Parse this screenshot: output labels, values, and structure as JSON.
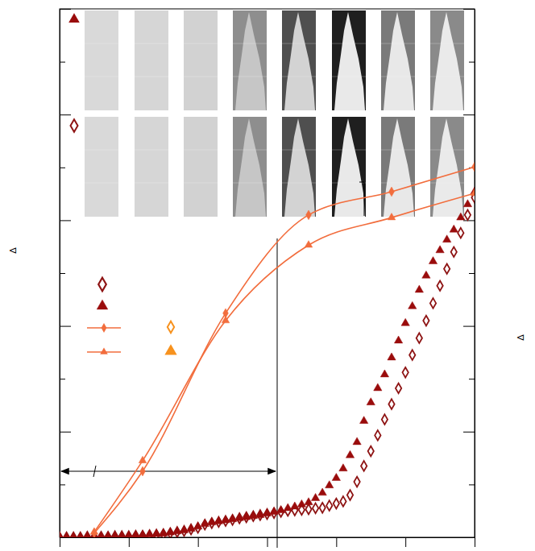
{
  "chart_data": {
    "type": "scatter",
    "y_label": "Δ",
    "y2_label": "Δ",
    "xlim": [
      0,
      6
    ],
    "xticks": [
      0,
      1,
      2,
      3,
      4,
      5,
      6
    ],
    "ylim": [
      0,
      10
    ],
    "yticks": [
      0,
      1,
      2,
      3,
      4,
      5,
      6,
      7,
      8,
      9,
      10
    ],
    "y2lim": [
      0,
      10
    ],
    "y2ticks": [
      0,
      1,
      2,
      3,
      4,
      5,
      6,
      7,
      8,
      9,
      10
    ],
    "tick_labels": false,
    "grid": false,
    "legend": "left",
    "series": [
      {
        "type": "scatter",
        "marker": "diamond-open",
        "color": "#8e1414",
        "x": [
          0,
          0.1,
          0.2,
          0.3,
          0.4,
          0.5,
          0.6,
          0.7,
          0.8,
          0.9,
          1,
          1.1,
          1.2,
          1.3,
          1.4,
          1.5,
          1.6,
          1.7,
          1.8,
          1.9,
          2,
          2.1,
          2.2,
          2.3,
          2.4,
          2.5,
          2.6,
          2.7,
          2.8,
          2.9,
          3,
          3.1,
          3.2,
          3.3,
          3.4,
          3.5,
          3.6,
          3.7,
          3.8,
          3.9,
          4,
          4.1,
          4.2,
          4.3,
          4.4,
          4.5,
          4.6,
          4.7,
          4.8,
          4.9,
          5,
          5.1,
          5.2,
          5.3,
          5.4,
          5.5,
          5.6,
          5.7,
          5.8,
          5.9,
          6
        ],
        "values": [
          0,
          0,
          0,
          0,
          0.01,
          0.01,
          0.01,
          0.01,
          0.02,
          0.02,
          0.02,
          0.03,
          0.03,
          0.04,
          0.05,
          0.06,
          0.08,
          0.1,
          0.12,
          0.15,
          0.18,
          0.24,
          0.27,
          0.29,
          0.31,
          0.33,
          0.36,
          0.38,
          0.4,
          0.42,
          0.44,
          0.46,
          0.48,
          0.5,
          0.51,
          0.52,
          0.53,
          0.55,
          0.56,
          0.6,
          0.64,
          0.68,
          0.8,
          1.05,
          1.35,
          1.63,
          1.93,
          2.23,
          2.52,
          2.82,
          3.12,
          3.45,
          3.77,
          4.1,
          4.43,
          4.76,
          5.08,
          5.4,
          5.76,
          6.1,
          6.43
        ]
      },
      {
        "type": "scatter",
        "marker": "triangle",
        "color": "#9a0c0c",
        "x": [
          0,
          0.1,
          0.2,
          0.3,
          0.4,
          0.5,
          0.6,
          0.7,
          0.8,
          0.9,
          1,
          1.1,
          1.2,
          1.3,
          1.4,
          1.5,
          1.6,
          1.7,
          1.8,
          1.9,
          2,
          2.1,
          2.2,
          2.3,
          2.4,
          2.5,
          2.6,
          2.7,
          2.8,
          2.9,
          3,
          3.1,
          3.2,
          3.3,
          3.4,
          3.5,
          3.6,
          3.7,
          3.8,
          3.9,
          4,
          4.1,
          4.2,
          4.3,
          4.4,
          4.5,
          4.6,
          4.7,
          4.8,
          4.9,
          5,
          5.1,
          5.2,
          5.3,
          5.4,
          5.5,
          5.6,
          5.7,
          5.8,
          5.9,
          6
        ],
        "values": [
          0,
          0,
          0,
          0,
          0.01,
          0.01,
          0.01,
          0.02,
          0.02,
          0.02,
          0.03,
          0.03,
          0.04,
          0.05,
          0.06,
          0.07,
          0.09,
          0.11,
          0.13,
          0.16,
          0.2,
          0.25,
          0.28,
          0.3,
          0.32,
          0.34,
          0.36,
          0.38,
          0.4,
          0.42,
          0.45,
          0.48,
          0.51,
          0.55,
          0.58,
          0.62,
          0.66,
          0.74,
          0.84,
          0.98,
          1.12,
          1.3,
          1.55,
          1.8,
          2.2,
          2.55,
          2.82,
          3.08,
          3.4,
          3.72,
          4.05,
          4.37,
          4.68,
          4.95,
          5.22,
          5.43,
          5.63,
          5.82,
          6.05,
          6.3,
          6.54
        ]
      },
      {
        "type": "line",
        "marker": "diamond",
        "color": "#f26d3d",
        "axis": "y2",
        "x": [
          0.5,
          1.2,
          2.4,
          3.6,
          4.8,
          6
        ],
        "values": [
          0.08,
          1.25,
          4.24,
          6.1,
          6.54,
          7.01
        ]
      },
      {
        "type": "line",
        "marker": "triangle",
        "color": "#f26d3d",
        "axis": "y2",
        "x": [
          0.5,
          1.2,
          2.4,
          3.6,
          4.8,
          6
        ],
        "values": [
          0.1,
          1.45,
          4.1,
          5.53,
          6.05,
          6.51
        ]
      }
    ]
  }
}
